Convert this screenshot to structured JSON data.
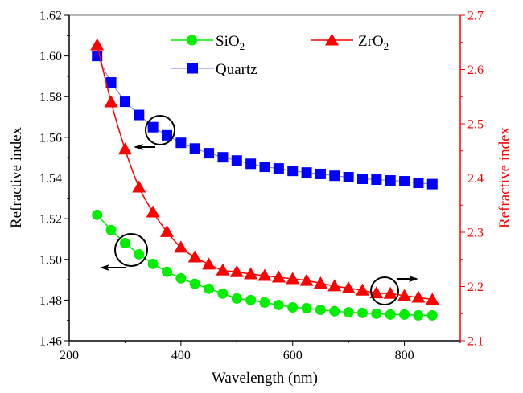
{
  "chart_data": {
    "type": "line",
    "title": "",
    "xlabel": "Wavelength (nm)",
    "ylabel_left": "Refractive index",
    "ylabel_right": "Refractive index",
    "xlim": [
      200,
      900
    ],
    "ylim_left": [
      1.46,
      1.62
    ],
    "ylim_right": [
      2.1,
      2.7
    ],
    "x_ticks": [
      200,
      400,
      600,
      800
    ],
    "x_tick_labels": [
      "200",
      "400",
      "600",
      "800"
    ],
    "y_left_ticks": [
      1.46,
      1.48,
      1.5,
      1.52,
      1.54,
      1.56,
      1.58,
      1.6,
      1.62
    ],
    "y_left_tick_labels": [
      "1.46",
      "1.48",
      "1.50",
      "1.52",
      "1.54",
      "1.56",
      "1.58",
      "1.60",
      "1.62"
    ],
    "y_right_ticks": [
      2.1,
      2.2,
      2.3,
      2.4,
      2.5,
      2.6,
      2.7
    ],
    "y_right_tick_labels": [
      "2.1",
      "2.2",
      "2.3",
      "2.4",
      "2.5",
      "2.6",
      "2.7"
    ],
    "grid": false,
    "legend_position": "top-center",
    "x": [
      250,
      275,
      300,
      325,
      350,
      375,
      400,
      425,
      450,
      475,
      500,
      525,
      550,
      575,
      600,
      625,
      650,
      675,
      700,
      725,
      750,
      775,
      800,
      825,
      850
    ],
    "series": [
      {
        "name": "SiO2",
        "legend_main": "SiO",
        "legend_sub": "2",
        "axis": "left",
        "color": "#00ee00",
        "marker": "circle",
        "values": [
          1.5219,
          1.5144,
          1.508,
          1.5025,
          1.4978,
          1.4939,
          1.4907,
          1.488,
          1.4856,
          1.4832,
          1.4808,
          1.48,
          1.4788,
          1.4776,
          1.4764,
          1.476,
          1.4752,
          1.4745,
          1.474,
          1.4737,
          1.4733,
          1.4729,
          1.4729,
          1.4725,
          1.4725
        ]
      },
      {
        "name": "Quartz",
        "legend_main": "Quartz",
        "legend_sub": "",
        "axis": "left",
        "color": "#0000ff",
        "line_color": "#7777ee",
        "marker": "square",
        "values": [
          1.6,
          1.587,
          1.5775,
          1.571,
          1.565,
          1.561,
          1.5573,
          1.5545,
          1.5522,
          1.5502,
          1.5486,
          1.547,
          1.5455,
          1.5447,
          1.5435,
          1.5427,
          1.542,
          1.5411,
          1.5404,
          1.5396,
          1.5392,
          1.5388,
          1.5384,
          1.5376,
          1.537
        ]
      },
      {
        "name": "ZrO2",
        "legend_main": "ZrO",
        "legend_sub": "2",
        "axis": "right",
        "color": "#ff0000",
        "marker": "triangle",
        "values": [
          2.645,
          2.54,
          2.453,
          2.383,
          2.337,
          2.301,
          2.272,
          2.254,
          2.241,
          2.23,
          2.227,
          2.223,
          2.22,
          2.217,
          2.214,
          2.211,
          2.206,
          2.201,
          2.197,
          2.193,
          2.188,
          2.187,
          2.183,
          2.18,
          2.176
        ]
      }
    ],
    "annotations": [
      {
        "type": "circle-arrow",
        "target_series": "Quartz",
        "at_x": 365,
        "direction": "left",
        "meaning": "left axis"
      },
      {
        "type": "circle-arrow",
        "target_series": "SiO2",
        "at_x": 312,
        "direction": "left",
        "meaning": "left axis"
      },
      {
        "type": "circle-arrow",
        "target_series": "ZrO2",
        "at_x": 765,
        "direction": "right",
        "meaning": "right axis"
      }
    ]
  }
}
